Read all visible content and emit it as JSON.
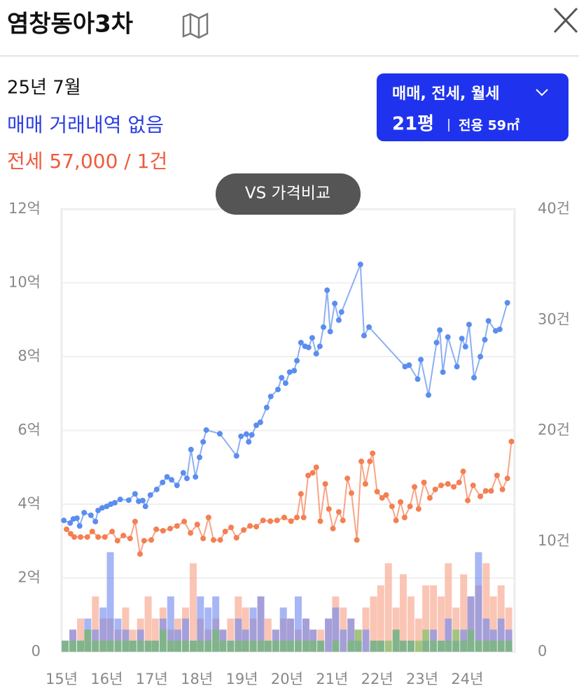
{
  "header": {
    "title": "염창동아3차"
  },
  "info": {
    "date": "25년 7월",
    "sale": "매매 거래내역 없음",
    "jeonse": "전세 57,000 / 1건"
  },
  "filter": {
    "types": "매매, 전세, 월세",
    "size": "21평",
    "area": "전용 59㎡"
  },
  "compare_button": "VS 가격비교",
  "chart_data": {
    "type": "line",
    "xlim": [
      15,
      25.05
    ],
    "xticks": [
      {
        "value": 15,
        "label": "15년"
      },
      {
        "value": 16,
        "label": "16년"
      },
      {
        "value": 17,
        "label": "17년"
      },
      {
        "value": 18,
        "label": "18년"
      },
      {
        "value": 19,
        "label": "19년"
      },
      {
        "value": 20,
        "label": "20년"
      },
      {
        "value": 21,
        "label": "21년"
      },
      {
        "value": 22,
        "label": "22년"
      },
      {
        "value": 23,
        "label": "23년"
      },
      {
        "value": 24,
        "label": "24년"
      }
    ],
    "ylim": [
      0,
      12
    ],
    "yticks": [
      0,
      {
        "value": 2,
        "label": "2억"
      },
      {
        "value": 4,
        "label": "4억"
      },
      {
        "value": 6,
        "label": "6억"
      },
      {
        "value": 8,
        "label": "8억"
      },
      {
        "value": 10,
        "label": "10억"
      },
      {
        "value": 12,
        "label": "12억"
      }
    ],
    "y2lim": [
      0,
      40
    ],
    "y2ticks": [
      0,
      {
        "value": 10,
        "label": "10건"
      },
      {
        "value": 20,
        "label": "20건"
      },
      {
        "value": 30,
        "label": "30건"
      },
      {
        "value": 40,
        "label": "40건"
      }
    ],
    "grid": true,
    "series": [
      {
        "type": "bar",
        "axis": "y2",
        "color": "#f7a084",
        "x": [
          15.08,
          15.25,
          15.42,
          15.58,
          15.75,
          15.92,
          16.08,
          16.25,
          16.42,
          16.58,
          16.75,
          16.92,
          17.08,
          17.25,
          17.42,
          17.58,
          17.75,
          17.92,
          18.08,
          18.25,
          18.42,
          18.58,
          18.75,
          18.92,
          19.08,
          19.25,
          19.42,
          19.58,
          19.75,
          19.92,
          20.08,
          20.25,
          20.42,
          20.58,
          20.75,
          20.92,
          21.08,
          21.25,
          21.42,
          21.58,
          21.75,
          21.92,
          22.08,
          22.25,
          22.42,
          22.58,
          22.75,
          22.92,
          23.08,
          23.25,
          23.42,
          23.58,
          23.75,
          23.92,
          24.08,
          24.25,
          24.42,
          24.58,
          24.75,
          24.92
        ],
        "values": [
          1,
          2,
          3,
          2,
          5,
          3,
          3,
          2,
          4,
          2,
          3,
          5,
          3,
          4,
          2,
          3,
          4,
          8,
          3,
          2,
          3,
          2,
          3,
          5,
          4,
          3,
          5,
          3,
          2,
          3,
          3,
          2,
          3,
          2,
          2,
          3,
          5,
          4,
          3,
          2,
          4,
          5,
          6,
          8,
          4,
          7,
          5,
          3,
          6,
          6,
          5,
          8,
          4,
          7,
          5,
          6,
          8,
          5,
          6,
          4
        ]
      },
      {
        "type": "bar",
        "axis": "y2",
        "color": "#6d86f0",
        "x": [
          15.08,
          15.25,
          15.42,
          15.58,
          15.75,
          15.92,
          16.08,
          16.25,
          16.42,
          16.58,
          16.75,
          16.92,
          17.08,
          17.25,
          17.42,
          17.58,
          17.75,
          17.92,
          18.08,
          18.25,
          18.42,
          18.58,
          18.75,
          18.92,
          19.08,
          19.25,
          19.42,
          19.58,
          19.75,
          19.92,
          20.08,
          20.25,
          20.42,
          20.58,
          20.75,
          20.92,
          21.08,
          21.25,
          21.42,
          21.58,
          21.75,
          21.92,
          22.08,
          22.25,
          22.42,
          22.58,
          22.75,
          22.92,
          23.08,
          23.25,
          23.42,
          23.58,
          23.75,
          23.92,
          24.08,
          24.25,
          24.42,
          24.58,
          24.75,
          24.92
        ],
        "values": [
          1,
          2,
          1,
          3,
          2,
          4,
          9,
          3,
          2,
          1,
          2,
          1,
          1,
          3,
          5,
          2,
          3,
          1,
          5,
          4,
          5,
          2,
          1,
          3,
          2,
          4,
          5,
          1,
          2,
          4,
          3,
          5,
          3,
          2,
          1,
          3,
          4,
          2,
          3,
          1,
          2,
          1,
          1,
          0,
          2,
          1,
          1,
          0,
          1,
          2,
          1,
          3,
          1,
          2,
          5,
          9,
          3,
          2,
          3,
          2
        ]
      },
      {
        "type": "bar",
        "axis": "y2",
        "color": "#6cc35a",
        "x": [
          15.08,
          15.25,
          15.42,
          15.58,
          15.75,
          15.92,
          16.08,
          16.25,
          16.42,
          16.58,
          16.75,
          16.92,
          17.08,
          17.25,
          17.42,
          17.58,
          17.75,
          17.92,
          18.08,
          18.25,
          18.42,
          18.58,
          18.75,
          18.92,
          19.08,
          19.25,
          19.42,
          19.58,
          19.75,
          19.92,
          20.08,
          20.25,
          20.42,
          20.58,
          20.75,
          20.92,
          21.08,
          21.25,
          21.42,
          21.58,
          21.75,
          21.92,
          22.08,
          22.25,
          22.42,
          22.58,
          22.75,
          22.92,
          23.08,
          23.25,
          23.42,
          23.58,
          23.75,
          23.92,
          24.08,
          24.25,
          24.42,
          24.58,
          24.75,
          24.92
        ],
        "values": [
          1,
          1,
          1,
          2,
          1,
          1,
          1,
          1,
          1,
          1,
          1,
          1,
          1,
          2,
          1,
          1,
          1,
          1,
          1,
          1,
          2,
          1,
          1,
          1,
          1,
          1,
          1,
          1,
          1,
          1,
          1,
          1,
          1,
          1,
          1,
          0,
          1,
          0,
          1,
          2,
          0,
          1,
          1,
          1,
          2,
          1,
          1,
          1,
          2,
          1,
          1,
          1,
          2,
          1,
          2,
          1,
          1,
          1,
          1,
          1
        ]
      },
      {
        "type": "line",
        "color": "#f47f52",
        "x": [
          15.11,
          15.2,
          15.28,
          15.42,
          15.57,
          15.68,
          15.81,
          15.96,
          16.12,
          16.24,
          16.37,
          16.52,
          16.63,
          16.74,
          16.83,
          16.99,
          17.1,
          17.25,
          17.41,
          17.56,
          17.72,
          17.86,
          18.01,
          18.14,
          18.26,
          18.37,
          18.52,
          18.63,
          18.76,
          18.88,
          19.04,
          19.18,
          19.32,
          19.47,
          19.63,
          19.78,
          19.94,
          20.09,
          20.22,
          20.31,
          20.37,
          20.47,
          20.57,
          20.65,
          20.74,
          20.85,
          20.93,
          21.02,
          21.15,
          21.24,
          21.34,
          21.43,
          21.55,
          21.65,
          21.74,
          21.84,
          21.9,
          22.0,
          22.11,
          22.2,
          22.33,
          22.42,
          22.52,
          22.61,
          22.73,
          22.83,
          22.92,
          23.04,
          23.17,
          23.29,
          23.42,
          23.57,
          23.7,
          23.82,
          23.91,
          24.01,
          24.13,
          24.29,
          24.41,
          24.53,
          24.66,
          24.78,
          24.89,
          24.98
        ],
        "values": [
          3.32,
          3.2,
          3.11,
          3.11,
          3.11,
          3.26,
          3.11,
          3.11,
          3.26,
          3.01,
          3.15,
          3.07,
          3.53,
          2.65,
          3.01,
          3.03,
          3.32,
          3.28,
          3.34,
          3.41,
          3.53,
          3.22,
          3.45,
          3.07,
          3.64,
          3.03,
          3.03,
          3.26,
          3.37,
          3.09,
          3.3,
          3.41,
          3.39,
          3.56,
          3.54,
          3.56,
          3.64,
          3.54,
          3.64,
          4.28,
          3.64,
          4.78,
          4.85,
          5.0,
          3.54,
          4.55,
          3.87,
          3.34,
          3.79,
          3.56,
          4.7,
          4.3,
          3.03,
          5.16,
          4.55,
          5.16,
          5.38,
          4.34,
          4.17,
          4.25,
          3.94,
          3.56,
          4.06,
          3.64,
          3.94,
          4.47,
          3.87,
          4.59,
          4.17,
          4.4,
          4.51,
          4.55,
          4.47,
          4.59,
          4.89,
          4.1,
          4.51,
          4.21,
          4.36,
          4.36,
          4.78,
          4.4,
          4.7,
          5.7
        ]
      },
      {
        "type": "line",
        "color": "#5b8def",
        "x": [
          15.05,
          15.19,
          15.26,
          15.34,
          15.4,
          15.5,
          15.65,
          15.75,
          15.81,
          15.9,
          16.0,
          16.09,
          16.18,
          16.3,
          16.49,
          16.63,
          16.71,
          16.8,
          16.86,
          16.97,
          17.11,
          17.24,
          17.34,
          17.44,
          17.56,
          17.7,
          17.78,
          17.87,
          17.97,
          18.06,
          18.14,
          18.21,
          18.51,
          18.88,
          18.98,
          19.1,
          19.15,
          19.22,
          19.32,
          19.41,
          19.55,
          19.64,
          19.8,
          19.88,
          19.97,
          20.06,
          20.16,
          20.22,
          20.31,
          20.4,
          20.48,
          20.56,
          20.65,
          20.73,
          20.81,
          20.89,
          20.96,
          21.06,
          21.15,
          21.21,
          21.63,
          21.71,
          21.82,
          22.62,
          22.71,
          22.9,
          22.97,
          23.14,
          23.32,
          23.39,
          23.46,
          23.57,
          23.77,
          23.88,
          23.96,
          24.04,
          24.15,
          24.29,
          24.39,
          24.47,
          24.63,
          24.72,
          24.89
        ],
        "values": [
          3.56,
          3.49,
          3.6,
          3.62,
          3.41,
          3.77,
          3.7,
          3.53,
          3.83,
          3.9,
          3.94,
          4.0,
          4.04,
          4.13,
          4.11,
          4.28,
          4.08,
          4.1,
          3.94,
          4.25,
          4.4,
          4.59,
          4.74,
          4.66,
          4.51,
          4.85,
          4.7,
          5.48,
          4.74,
          5.27,
          5.69,
          6.01,
          5.91,
          5.31,
          5.84,
          5.9,
          5.69,
          5.88,
          6.14,
          6.22,
          6.62,
          6.92,
          7.11,
          7.43,
          7.28,
          7.58,
          7.62,
          7.89,
          8.38,
          8.28,
          8.25,
          8.51,
          8.08,
          8.28,
          8.8,
          9.8,
          8.68,
          9.44,
          8.99,
          9.21,
          10.5,
          8.57,
          8.8,
          7.73,
          7.77,
          7.39,
          7.92,
          6.96,
          8.38,
          8.72,
          7.58,
          8.53,
          7.73,
          8.49,
          8.27,
          8.87,
          7.43,
          8.0,
          8.46,
          8.97,
          8.7,
          8.74,
          9.46
        ]
      }
    ]
  }
}
